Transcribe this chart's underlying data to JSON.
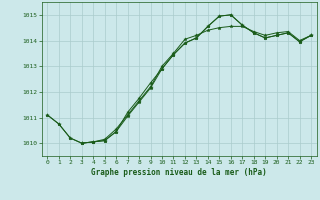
{
  "title": "Graphe pression niveau de la mer (hPa)",
  "bg_color": "#cce8ea",
  "grid_color": "#aacccc",
  "line_color": "#1a5c1a",
  "xlim": [
    -0.5,
    23.5
  ],
  "ylim": [
    1009.5,
    1015.5
  ],
  "xticks": [
    0,
    1,
    2,
    3,
    4,
    5,
    6,
    7,
    8,
    9,
    10,
    11,
    12,
    13,
    14,
    15,
    16,
    17,
    18,
    19,
    20,
    21,
    22,
    23
  ],
  "yticks": [
    1010,
    1011,
    1012,
    1013,
    1014,
    1015
  ],
  "line1_x": [
    0,
    1,
    2,
    3,
    4,
    5,
    6,
    7,
    8,
    9,
    10,
    11,
    12,
    13,
    14,
    15,
    16,
    17,
    18,
    19,
    20,
    21,
    22,
    23
  ],
  "line1_y": [
    1011.1,
    1010.75,
    1010.2,
    1010.0,
    1010.05,
    1010.15,
    1010.55,
    1011.1,
    1011.65,
    1012.2,
    1013.0,
    1013.5,
    1014.05,
    1014.2,
    1014.4,
    1014.5,
    1014.55,
    1014.55,
    1014.35,
    1014.2,
    1014.3,
    1014.35,
    1014.0,
    1014.2
  ],
  "line2_x": [
    0,
    1,
    2,
    3,
    4,
    5,
    6,
    7,
    8,
    9,
    10,
    11,
    12,
    13,
    14,
    15,
    16,
    17,
    18,
    19,
    20,
    21,
    22,
    23
  ],
  "line2_y": [
    1011.1,
    1010.75,
    1010.2,
    1010.0,
    1010.05,
    1010.1,
    1010.45,
    1011.05,
    1011.6,
    1012.15,
    1012.9,
    1013.45,
    1013.9,
    1014.1,
    1014.55,
    1014.95,
    1015.0,
    1014.6,
    1014.3,
    1014.1,
    1014.2,
    1014.3,
    1013.95,
    1014.2
  ],
  "line3_x": [
    3,
    4,
    5,
    6,
    7,
    8,
    9,
    10,
    11,
    12,
    13,
    14,
    15,
    16,
    17,
    18,
    19,
    20,
    21,
    22,
    23
  ],
  "line3_y": [
    1010.0,
    1010.05,
    1010.1,
    1010.45,
    1011.2,
    1011.75,
    1012.35,
    1012.9,
    1013.45,
    1013.9,
    1014.1,
    1014.55,
    1014.95,
    1015.0,
    1014.6,
    1014.3,
    1014.1,
    1014.2,
    1014.3,
    1013.95,
    1014.2
  ]
}
